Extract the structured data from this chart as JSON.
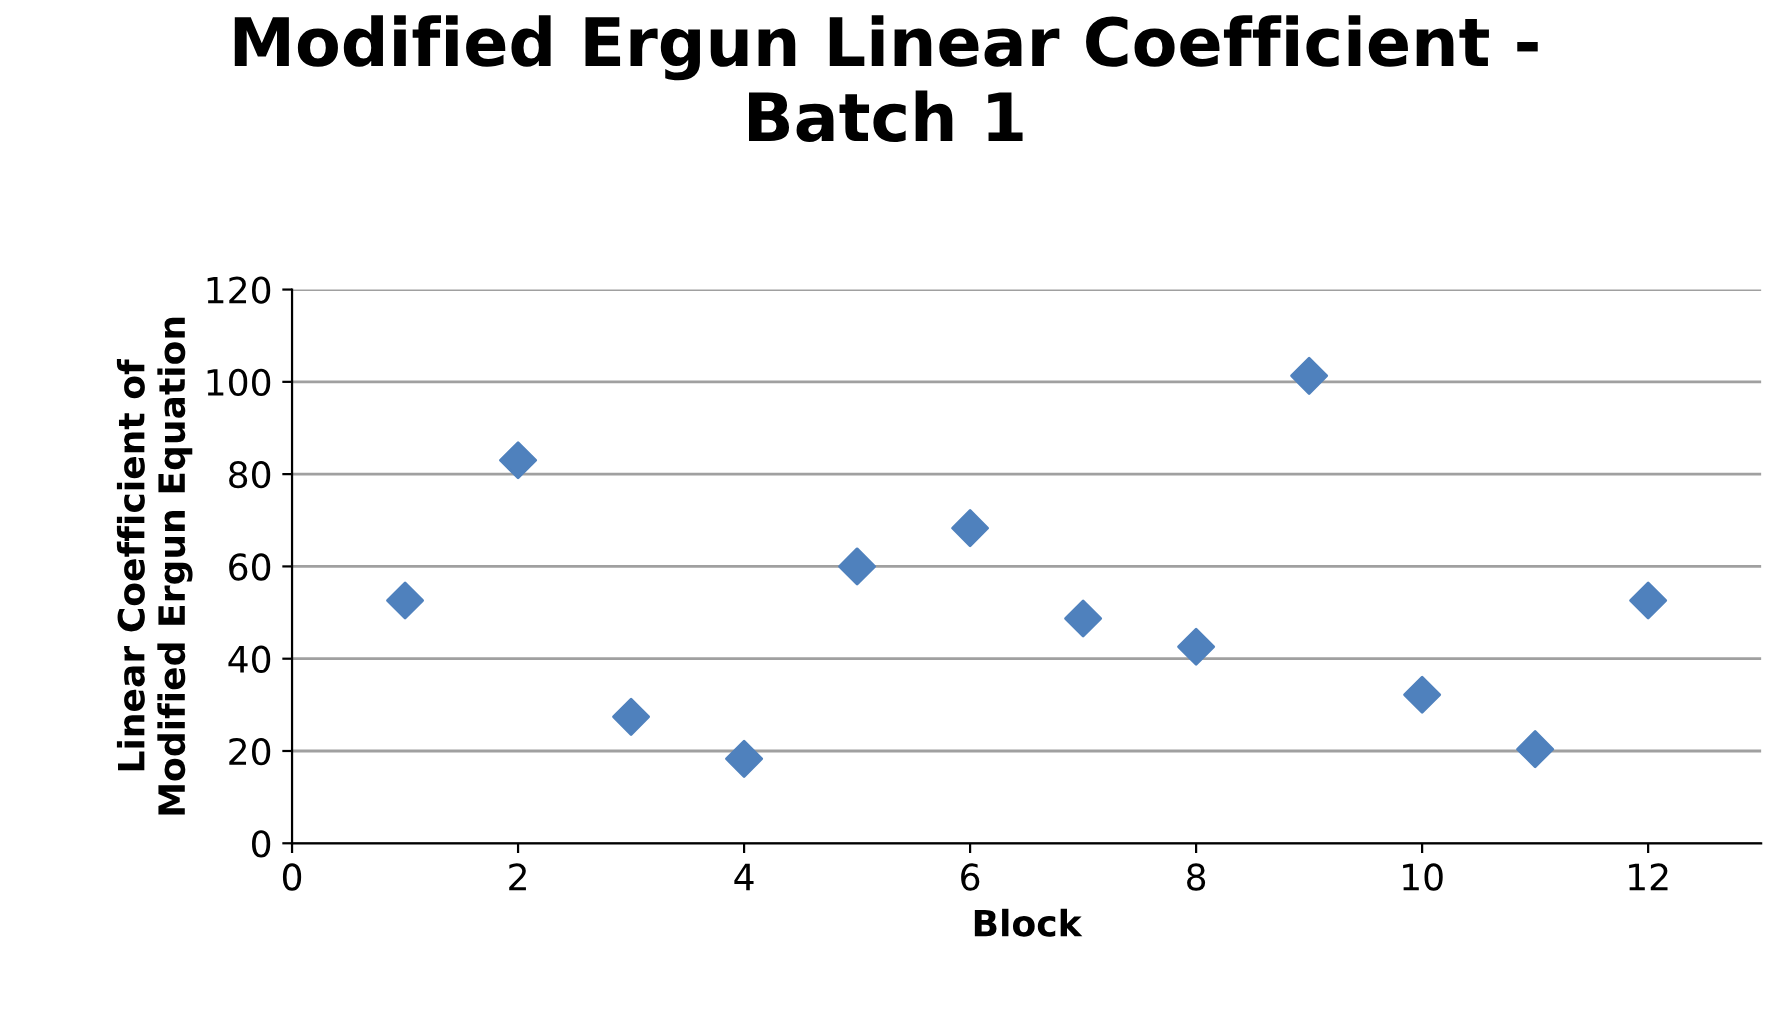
{
  "chart_data": {
    "type": "scatter",
    "title": "Modified Ergun Linear Coefficient -\nBatch 1",
    "xlabel": "Block",
    "ylabel": "Linear Coefficient of\nModified Ergun Equation",
    "x": [
      1,
      2,
      3,
      4,
      5,
      6,
      7,
      8,
      9,
      10,
      11,
      12
    ],
    "series": [
      {
        "color": "#4f81bd",
        "values": [
          52.6,
          83,
          27.4,
          18.3,
          60,
          68.3,
          48.7,
          42.6,
          101.3,
          32.2,
          20.4,
          52.6
        ]
      }
    ],
    "xlim": [
      0,
      13
    ],
    "xticks": [
      0,
      2,
      4,
      6,
      8,
      10,
      12
    ],
    "ylim": [
      0,
      120
    ],
    "yticks": [
      0,
      20,
      40,
      60,
      80,
      100,
      120
    ],
    "grid": "y",
    "marker": "diamond",
    "legend": false
  }
}
